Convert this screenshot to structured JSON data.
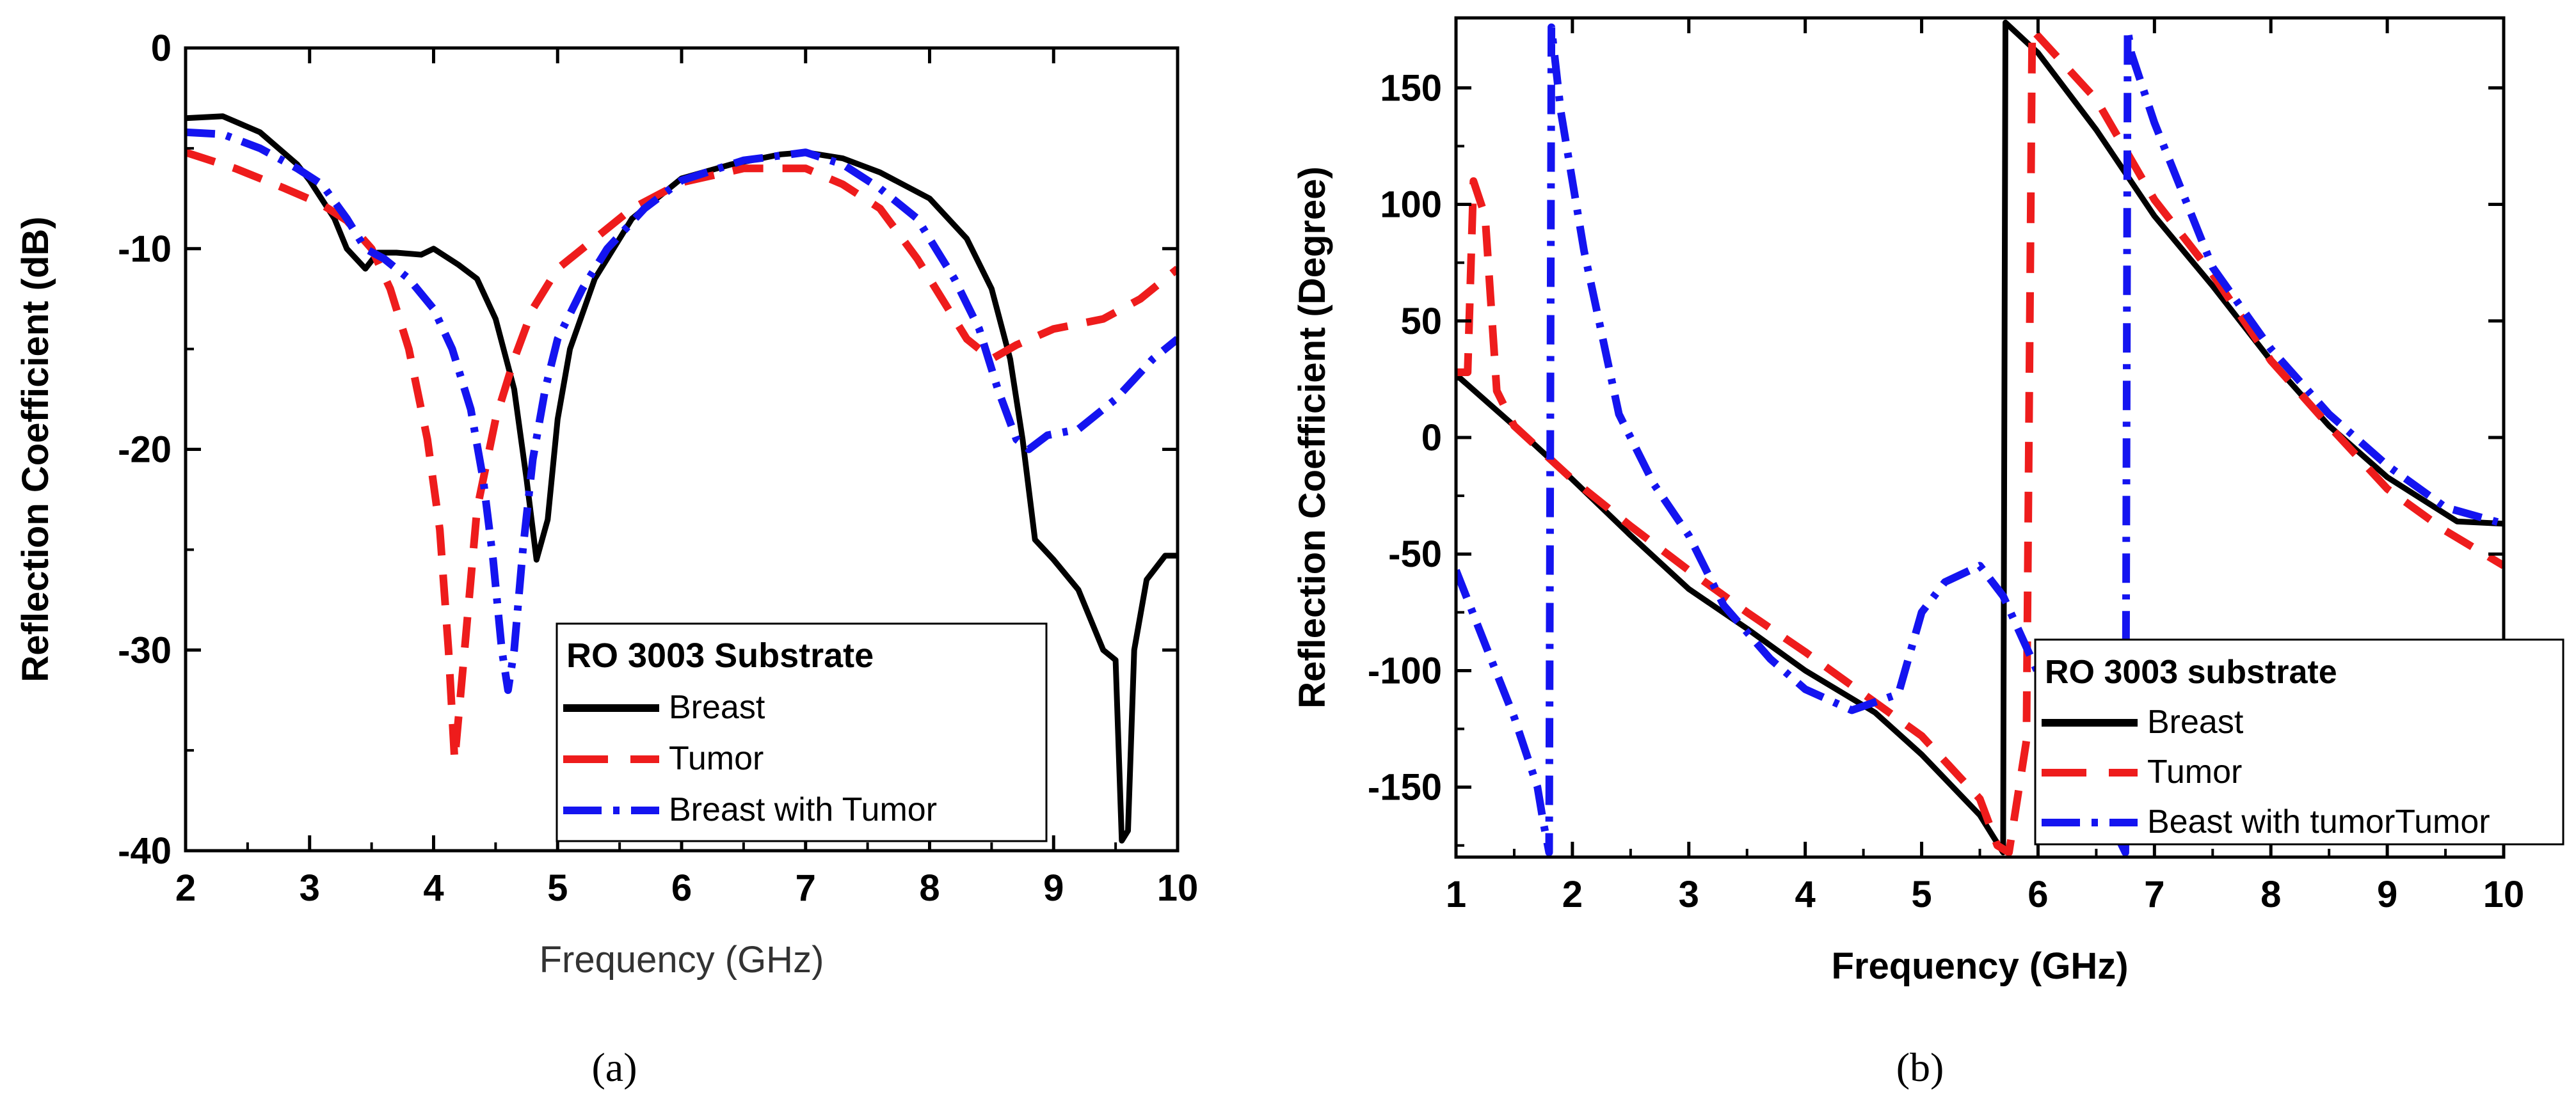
{
  "chart_data": [
    {
      "panel_label": "(a)",
      "type": "line",
      "title": "",
      "xlabel": "Frequency (GHz)",
      "ylabel": "Reflection Coefficient (dB)",
      "xlim": [
        2,
        10
      ],
      "ylim": [
        -40,
        0
      ],
      "xticks": [
        2,
        3,
        4,
        5,
        6,
        7,
        8,
        9,
        10
      ],
      "yticks": [
        0,
        -10,
        -20,
        -30,
        -40
      ],
      "grid": false,
      "legend_position": "bottom-right",
      "legend_title": "RO 3003 Substrate",
      "series": [
        {
          "name": "Breast",
          "color": "#000000",
          "dash": "solid",
          "points": [
            [
              2.0,
              -3.5
            ],
            [
              2.3,
              -3.4
            ],
            [
              2.6,
              -4.2
            ],
            [
              2.9,
              -5.8
            ],
            [
              3.0,
              -6.6
            ],
            [
              3.2,
              -8.5
            ],
            [
              3.3,
              -10.0
            ],
            [
              3.45,
              -11.0
            ],
            [
              3.55,
              -10.2
            ],
            [
              3.7,
              -10.2
            ],
            [
              3.9,
              -10.3
            ],
            [
              4.0,
              -10.0
            ],
            [
              4.2,
              -10.8
            ],
            [
              4.35,
              -11.5
            ],
            [
              4.5,
              -13.5
            ],
            [
              4.65,
              -17.0
            ],
            [
              4.75,
              -21.5
            ],
            [
              4.83,
              -25.5
            ],
            [
              4.92,
              -23.5
            ],
            [
              5.0,
              -18.5
            ],
            [
              5.1,
              -15.0
            ],
            [
              5.3,
              -11.5
            ],
            [
              5.6,
              -8.5
            ],
            [
              6.0,
              -6.5
            ],
            [
              6.4,
              -5.8
            ],
            [
              6.8,
              -5.3
            ],
            [
              7.0,
              -5.2
            ],
            [
              7.3,
              -5.5
            ],
            [
              7.6,
              -6.2
            ],
            [
              8.0,
              -7.5
            ],
            [
              8.3,
              -9.5
            ],
            [
              8.5,
              -12.0
            ],
            [
              8.65,
              -15.5
            ],
            [
              8.75,
              -19.5
            ],
            [
              8.85,
              -24.5
            ],
            [
              9.0,
              -25.5
            ],
            [
              9.2,
              -27.0
            ],
            [
              9.4,
              -30.0
            ],
            [
              9.5,
              -30.5
            ],
            [
              9.55,
              -39.5
            ],
            [
              9.6,
              -39.0
            ],
            [
              9.65,
              -30.0
            ],
            [
              9.75,
              -26.5
            ],
            [
              9.9,
              -25.3
            ],
            [
              10.0,
              -25.3
            ]
          ]
        },
        {
          "name": "Tumor",
          "color": "#ee1c1c",
          "dash": "long-dash",
          "points": [
            [
              2.0,
              -5.2
            ],
            [
              2.4,
              -6.0
            ],
            [
              2.8,
              -7.0
            ],
            [
              3.1,
              -7.8
            ],
            [
              3.3,
              -8.6
            ],
            [
              3.5,
              -10.0
            ],
            [
              3.65,
              -12.0
            ],
            [
              3.8,
              -15.0
            ],
            [
              3.95,
              -19.5
            ],
            [
              4.05,
              -24.0
            ],
            [
              4.12,
              -30.0
            ],
            [
              4.17,
              -35.5
            ],
            [
              4.25,
              -30.0
            ],
            [
              4.35,
              -23.0
            ],
            [
              4.5,
              -18.5
            ],
            [
              4.65,
              -15.5
            ],
            [
              4.8,
              -13.0
            ],
            [
              5.0,
              -11.0
            ],
            [
              5.3,
              -9.5
            ],
            [
              5.6,
              -8.0
            ],
            [
              6.0,
              -6.7
            ],
            [
              6.5,
              -6.0
            ],
            [
              7.0,
              -6.0
            ],
            [
              7.3,
              -6.8
            ],
            [
              7.6,
              -8.0
            ],
            [
              7.9,
              -10.5
            ],
            [
              8.1,
              -12.5
            ],
            [
              8.3,
              -14.5
            ],
            [
              8.5,
              -15.5
            ],
            [
              8.7,
              -14.8
            ],
            [
              9.0,
              -14.0
            ],
            [
              9.4,
              -13.5
            ],
            [
              9.7,
              -12.5
            ],
            [
              10.0,
              -11.0
            ]
          ]
        },
        {
          "name": "Breast with Tumor",
          "color": "#1414f0",
          "dash": "dash-dot",
          "points": [
            [
              2.0,
              -4.2
            ],
            [
              2.3,
              -4.3
            ],
            [
              2.6,
              -5.0
            ],
            [
              2.9,
              -6.0
            ],
            [
              3.1,
              -6.8
            ],
            [
              3.3,
              -8.5
            ],
            [
              3.45,
              -10.0
            ],
            [
              3.6,
              -10.5
            ],
            [
              3.8,
              -11.5
            ],
            [
              4.0,
              -13.0
            ],
            [
              4.15,
              -15.0
            ],
            [
              4.3,
              -18.0
            ],
            [
              4.4,
              -21.5
            ],
            [
              4.48,
              -25.5
            ],
            [
              4.55,
              -30.0
            ],
            [
              4.6,
              -32.0
            ],
            [
              4.65,
              -30.0
            ],
            [
              4.72,
              -25.0
            ],
            [
              4.8,
              -20.5
            ],
            [
              4.9,
              -17.0
            ],
            [
              5.0,
              -14.5
            ],
            [
              5.2,
              -12.0
            ],
            [
              5.4,
              -10.0
            ],
            [
              5.7,
              -8.0
            ],
            [
              6.0,
              -6.6
            ],
            [
              6.5,
              -5.6
            ],
            [
              7.0,
              -5.2
            ],
            [
              7.3,
              -5.8
            ],
            [
              7.6,
              -7.0
            ],
            [
              7.9,
              -8.5
            ],
            [
              8.2,
              -11.5
            ],
            [
              8.4,
              -14.0
            ],
            [
              8.55,
              -17.0
            ],
            [
              8.7,
              -19.5
            ],
            [
              8.8,
              -20.0
            ],
            [
              8.95,
              -19.3
            ],
            [
              9.2,
              -19.0
            ],
            [
              9.5,
              -17.5
            ],
            [
              9.8,
              -15.5
            ],
            [
              10.0,
              -14.5
            ]
          ]
        }
      ]
    },
    {
      "panel_label": "(b)",
      "type": "line",
      "title": "",
      "xlabel": "Frequency (GHz)",
      "ylabel": "Reflection Coefficient (Degree)",
      "xlim": [
        1,
        10
      ],
      "ylim": [
        -180,
        180
      ],
      "xticks": [
        1,
        2,
        3,
        4,
        5,
        6,
        7,
        8,
        9,
        10
      ],
      "yticks": [
        150,
        100,
        50,
        0,
        -50,
        -100,
        -150
      ],
      "grid": false,
      "legend_position": "bottom-right",
      "legend_title": "RO 3003 substrate",
      "series": [
        {
          "name": "Breast",
          "color": "#000000",
          "dash": "solid",
          "points": [
            [
              1.0,
              27
            ],
            [
              1.5,
              5
            ],
            [
              2.0,
              -18
            ],
            [
              2.5,
              -42
            ],
            [
              3.0,
              -65
            ],
            [
              3.5,
              -82
            ],
            [
              4.0,
              -100
            ],
            [
              4.6,
              -118
            ],
            [
              5.0,
              -136
            ],
            [
              5.5,
              -162
            ],
            [
              5.7,
              -178
            ],
            [
              5.72,
              178
            ],
            [
              6.0,
              165
            ],
            [
              6.5,
              132
            ],
            [
              7.0,
              95
            ],
            [
              7.5,
              65
            ],
            [
              8.0,
              33
            ],
            [
              8.5,
              5
            ],
            [
              9.0,
              -17
            ],
            [
              9.6,
              -36
            ],
            [
              10.0,
              -37
            ]
          ]
        },
        {
          "name": "Tumor",
          "color": "#ee1c1c",
          "dash": "long-dash",
          "points": [
            [
              1.0,
              28
            ],
            [
              1.1,
              28
            ],
            [
              1.15,
              110
            ],
            [
              1.25,
              95
            ],
            [
              1.35,
              20
            ],
            [
              1.5,
              5
            ],
            [
              2.0,
              -18
            ],
            [
              2.5,
              -38
            ],
            [
              3.0,
              -57
            ],
            [
              3.5,
              -75
            ],
            [
              4.0,
              -92
            ],
            [
              4.5,
              -110
            ],
            [
              5.0,
              -128
            ],
            [
              5.5,
              -155
            ],
            [
              5.65,
              -175
            ],
            [
              5.75,
              -178
            ],
            [
              5.9,
              -130
            ],
            [
              5.95,
              175
            ],
            [
              6.5,
              145
            ],
            [
              7.0,
              102
            ],
            [
              7.5,
              70
            ],
            [
              8.0,
              33
            ],
            [
              8.5,
              5
            ],
            [
              9.0,
              -22
            ],
            [
              9.5,
              -40
            ],
            [
              10.0,
              -55
            ]
          ]
        },
        {
          "name": "Beast with tumorTumor",
          "color": "#1414f0",
          "dash": "dash-dot",
          "points": [
            [
              1.0,
              -57
            ],
            [
              1.3,
              -95
            ],
            [
              1.5,
              -120
            ],
            [
              1.7,
              -150
            ],
            [
              1.75,
              -165
            ],
            [
              1.8,
              -178
            ],
            [
              1.82,
              176
            ],
            [
              1.9,
              140
            ],
            [
              2.1,
              80
            ],
            [
              2.4,
              10
            ],
            [
              2.7,
              -20
            ],
            [
              3.0,
              -42
            ],
            [
              3.3,
              -72
            ],
            [
              3.7,
              -95
            ],
            [
              4.0,
              -108
            ],
            [
              4.4,
              -117
            ],
            [
              4.8,
              -110
            ],
            [
              5.0,
              -75
            ],
            [
              5.2,
              -62
            ],
            [
              5.5,
              -55
            ],
            [
              5.7,
              -68
            ],
            [
              5.9,
              -90
            ],
            [
              6.0,
              -101
            ],
            [
              6.75,
              -178
            ],
            [
              6.77,
              175
            ],
            [
              6.8,
              165
            ],
            [
              7.0,
              135
            ],
            [
              7.5,
              73
            ],
            [
              8.0,
              38
            ],
            [
              8.5,
              10
            ],
            [
              9.0,
              -12
            ],
            [
              9.5,
              -30
            ],
            [
              10.0,
              -37
            ]
          ]
        }
      ]
    }
  ]
}
